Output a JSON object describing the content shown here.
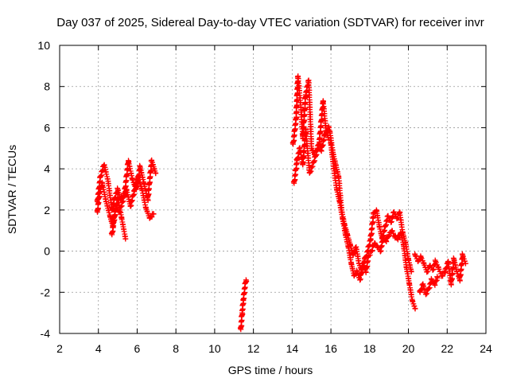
{
  "chart_data": {
    "type": "scatter",
    "title": "Day 037 of 2025, Sidereal Day-to-day VTEC variation (SDTVAR) for receiver invr",
    "xlabel": "GPS time / hours",
    "ylabel": "SDTVAR / TECUs",
    "xlim": [
      2,
      24
    ],
    "ylim": [
      -4,
      10
    ],
    "x_ticks": [
      "2",
      "4",
      "6",
      "8",
      "10",
      "12",
      "14",
      "16",
      "18",
      "20",
      "22",
      "24"
    ],
    "y_ticks": [
      "-4",
      "-2",
      "0",
      "2",
      "4",
      "6",
      "8",
      "10"
    ],
    "grid": true,
    "marker": "+",
    "series": [
      {
        "name": "SDTVAR",
        "color": "#ff0000",
        "segments": [
          {
            "x": [
              3.95,
              4.1,
              4.3,
              4.5,
              4.7,
              4.85,
              5.0,
              5.15,
              5.35,
              5.55,
              5.75,
              5.95,
              6.15,
              6.35,
              6.55,
              6.75,
              6.95
            ],
            "y": [
              2.4,
              3.6,
              4.2,
              3.4,
              2.0,
              2.6,
              3.0,
              2.5,
              2.8,
              4.4,
              3.5,
              3.0,
              4.1,
              3.3,
              2.5,
              4.4,
              3.8
            ]
          },
          {
            "x": [
              3.95,
              4.05,
              4.2,
              4.4,
              4.6,
              4.75,
              4.9,
              5.05,
              5.25,
              5.45,
              5.65,
              5.85,
              6.05,
              6.25,
              6.45,
              6.65,
              6.85
            ],
            "y": [
              1.9,
              2.8,
              3.3,
              2.4,
              1.7,
              1.2,
              2.2,
              1.9,
              2.4,
              3.0,
              2.2,
              2.9,
              3.6,
              3.0,
              2.1,
              1.6,
              1.8
            ]
          },
          {
            "x": [
              4.7,
              4.8,
              5.0,
              5.2,
              5.4
            ],
            "y": [
              0.8,
              1.5,
              2.6,
              1.6,
              0.6
            ]
          },
          {
            "x": [
              11.35,
              11.42,
              11.48,
              11.55,
              11.62
            ],
            "y": [
              -3.8,
              -3.0,
              -2.4,
              -1.8,
              -1.4
            ]
          },
          {
            "x": [
              14.05,
              14.2,
              14.3,
              14.45,
              14.55,
              14.7,
              14.85,
              15.0,
              15.2,
              15.4,
              15.6,
              15.75,
              15.9
            ],
            "y": [
              5.2,
              6.4,
              8.5,
              7.0,
              5.5,
              7.6,
              8.3,
              5.0,
              4.6,
              5.3,
              7.3,
              5.8,
              5.4
            ]
          },
          {
            "x": [
              14.1,
              14.25,
              14.4,
              14.55,
              14.7,
              14.9,
              15.1,
              15.3,
              15.5,
              15.7,
              15.9
            ],
            "y": [
              3.3,
              4.4,
              5.0,
              4.2,
              5.9,
              3.8,
              4.3,
              5.0,
              4.9,
              5.7,
              6.0
            ]
          },
          {
            "x": [
              15.95,
              16.1,
              16.25,
              16.4,
              16.55,
              16.7,
              16.85,
              17.0,
              17.15,
              17.3,
              17.45,
              17.6,
              17.75,
              17.9,
              18.05,
              18.2,
              18.35,
              18.5,
              18.65,
              18.8,
              18.95,
              19.1,
              19.25,
              19.4,
              19.55,
              19.7,
              19.85,
              20.0,
              20.15
            ],
            "y": [
              5.8,
              4.8,
              4.2,
              3.6,
              2.0,
              1.3,
              0.8,
              0.3,
              -0.2,
              0.2,
              -0.6,
              -1.0,
              -0.4,
              0.0,
              0.6,
              1.8,
              2.0,
              1.2,
              0.6,
              1.2,
              1.7,
              1.4,
              1.9,
              1.6,
              1.9,
              0.9,
              0.4,
              -0.4,
              -1.0
            ]
          },
          {
            "x": [
              16.0,
              16.15,
              16.3,
              16.45,
              16.6,
              16.75,
              16.9,
              17.05,
              17.2,
              17.35,
              17.5,
              17.65,
              17.8,
              17.95,
              18.1,
              18.25,
              18.4,
              18.55,
              18.7,
              18.85,
              19.0,
              19.15,
              19.3,
              19.45,
              19.6,
              19.75,
              19.9,
              20.05,
              20.2,
              20.35
            ],
            "y": [
              5.2,
              4.0,
              3.0,
              2.4,
              1.6,
              0.8,
              0.2,
              -0.6,
              -1.2,
              -1.0,
              -1.4,
              -0.6,
              -1.0,
              -0.2,
              0.0,
              0.4,
              0.2,
              0.0,
              0.6,
              0.5,
              0.8,
              1.0,
              0.7,
              0.6,
              0.9,
              0.3,
              -0.8,
              -1.6,
              -2.4,
              -2.8
            ]
          },
          {
            "x": [
              20.35,
              20.5,
              20.65,
              20.8,
              20.95,
              21.1,
              21.25,
              21.4,
              21.55,
              21.7,
              21.9,
              22.05,
              22.2,
              22.35,
              22.5,
              22.65,
              22.8,
              22.95
            ],
            "y": [
              -0.2,
              -0.5,
              -0.3,
              -0.6,
              -1.0,
              -0.7,
              -0.9,
              -0.5,
              -0.8,
              -1.2,
              -1.0,
              -0.5,
              -1.6,
              -0.4,
              -1.0,
              -1.4,
              -0.2,
              -0.6
            ]
          },
          {
            "x": [
              20.6,
              20.75,
              20.9,
              21.05,
              21.2,
              21.35,
              21.5
            ],
            "y": [
              -2.0,
              -1.6,
              -2.1,
              -1.8,
              -1.4,
              -1.6,
              -1.3
            ]
          }
        ]
      }
    ]
  }
}
